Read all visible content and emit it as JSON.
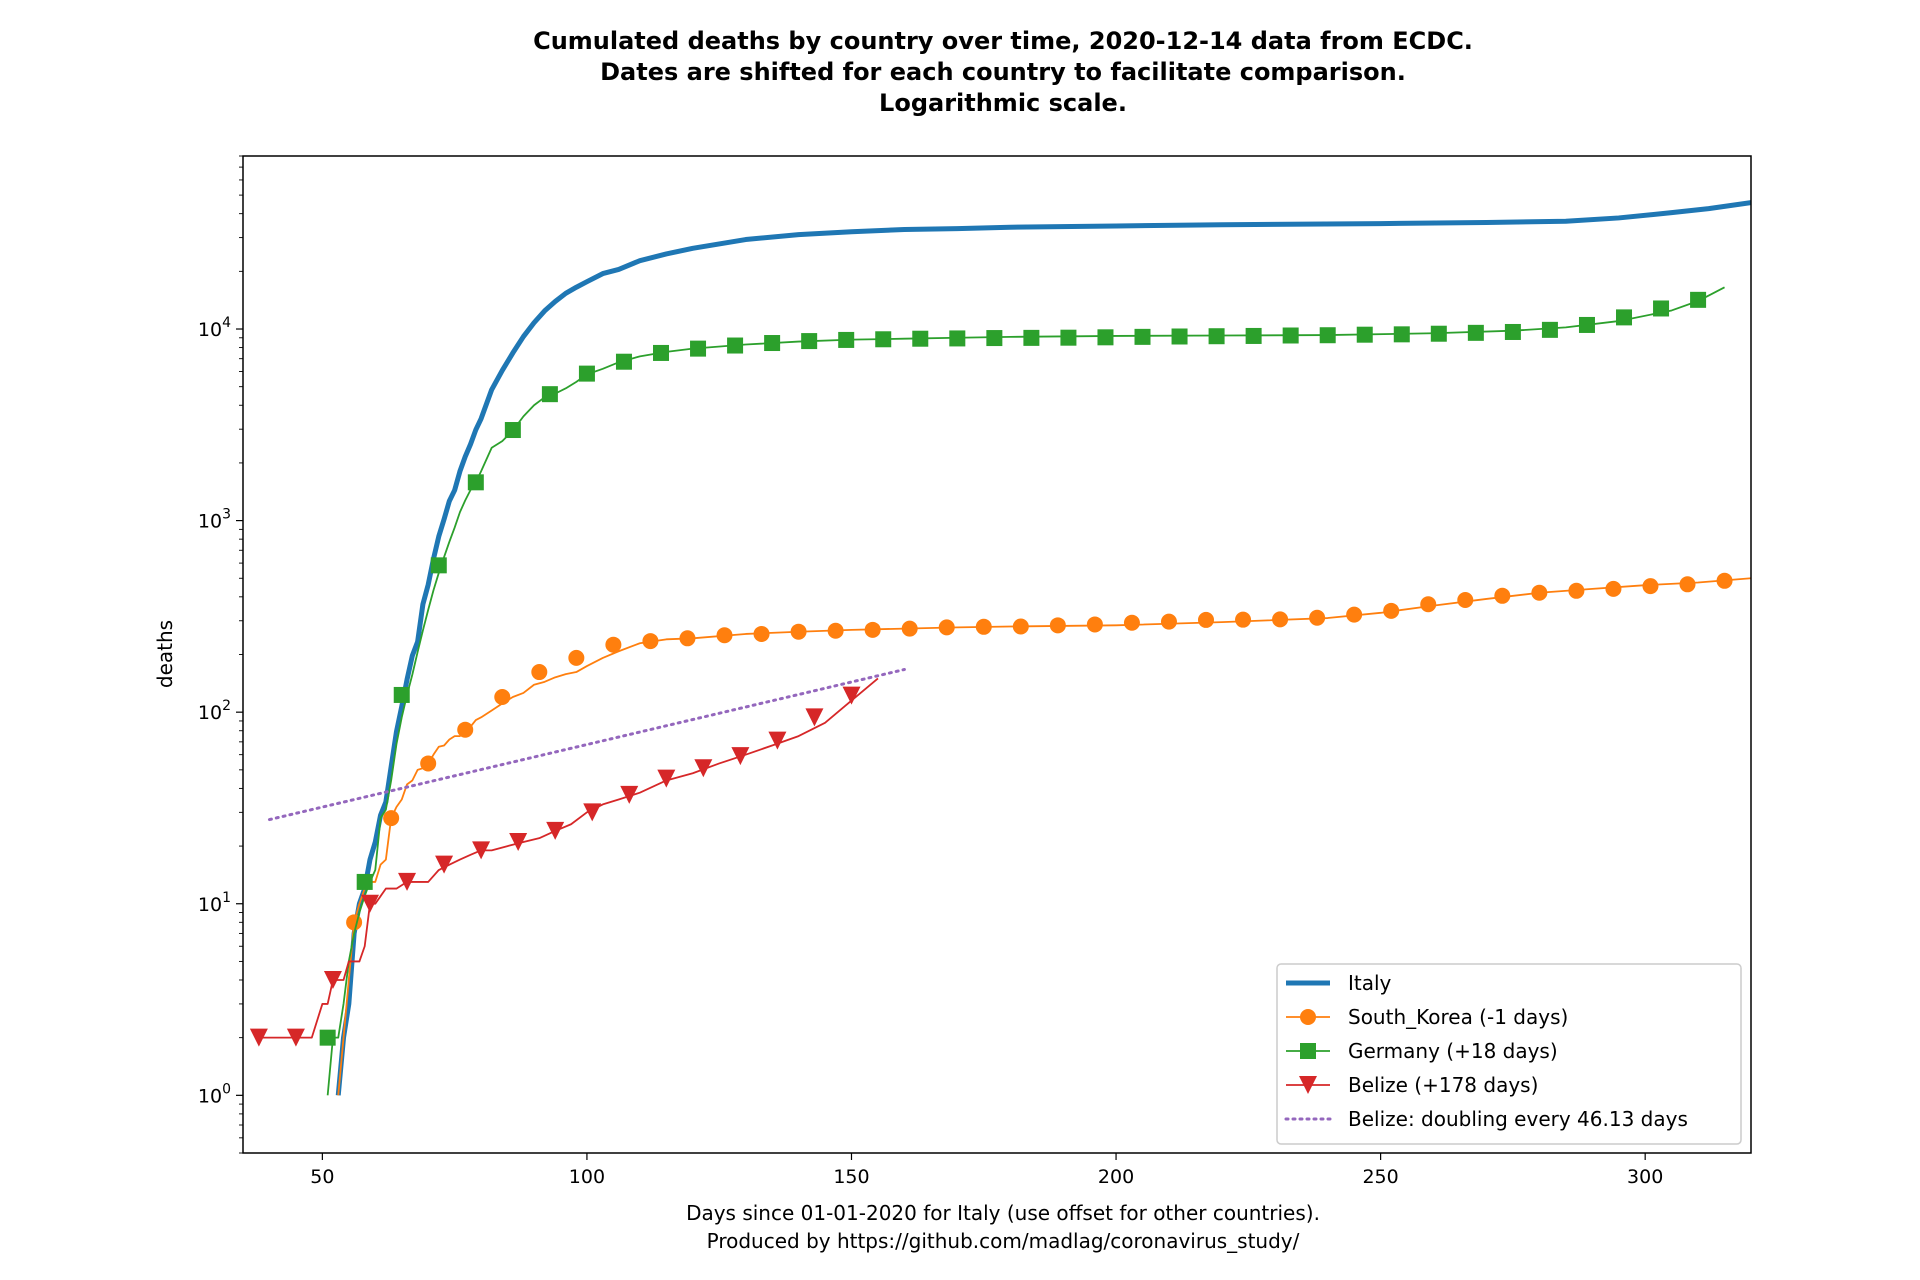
{
  "chart_data": {
    "type": "line",
    "title_lines": [
      "Cumulated deaths by country over time, 2020-12-14 data from ECDC.",
      "Dates are shifted for each country to facilitate comparison.",
      "Logarithmic scale."
    ],
    "xlabel_lines": [
      "Days since 01-01-2020 for Italy (use offset for other countries).",
      "Produced by https://github.com/madlag/coronavirus_study/"
    ],
    "ylabel": "deaths",
    "x_scale": "linear",
    "y_scale": "log",
    "xlim": [
      35,
      320
    ],
    "ylim": [
      0.5,
      80000
    ],
    "x_ticks": [
      50,
      100,
      150,
      200,
      250,
      300
    ],
    "y_ticks": [
      1,
      10,
      100,
      1000,
      10000
    ],
    "y_tick_labels": [
      {
        "base": "10",
        "exp": "0"
      },
      {
        "base": "10",
        "exp": "1"
      },
      {
        "base": "10",
        "exp": "2"
      },
      {
        "base": "10",
        "exp": "3"
      },
      {
        "base": "10",
        "exp": "4"
      }
    ],
    "grid": false,
    "legend_position": "lower right",
    "series": [
      {
        "name": "Italy",
        "color": "#1f77b4",
        "marker": "none",
        "line_style": "solid",
        "x": [
          53,
          54,
          55,
          56,
          57,
          58,
          59,
          60,
          61,
          62,
          63,
          64,
          65,
          66,
          67,
          68,
          69,
          70,
          71,
          72,
          73,
          74,
          75,
          76,
          77,
          78,
          79,
          80,
          82,
          84,
          86,
          88,
          90,
          92,
          94,
          96,
          98,
          100,
          103,
          106,
          110,
          115,
          120,
          130,
          140,
          150,
          160,
          170,
          180,
          200,
          220,
          250,
          270,
          285,
          295,
          305,
          312,
          320
        ],
        "y": [
          1,
          2,
          3,
          7,
          10,
          12,
          17,
          21,
          29,
          34,
          52,
          79,
          107,
          148,
          197,
          233,
          366,
          463,
          631,
          827,
          1016,
          1266,
          1441,
          1809,
          2158,
          2503,
          2978,
          3405,
          4825,
          6077,
          7503,
          9134,
          10779,
          12428,
          13915,
          15362,
          16523,
          17669,
          19468,
          20465,
          22745,
          24648,
          26384,
          29315,
          31106,
          32169,
          33072,
          33415,
          34000,
          34500,
          35000,
          35500,
          36000,
          36500,
          38000,
          40500,
          42500,
          45700
        ]
      },
      {
        "name": "South_Korea (-1 days)",
        "color": "#ff7f0e",
        "marker": "circle",
        "line_style": "solid",
        "x": [
          53,
          54,
          55,
          56,
          57,
          58,
          59,
          60,
          61,
          62,
          63,
          64,
          65,
          66,
          67,
          68,
          69,
          70,
          71,
          72,
          73,
          74,
          75,
          76,
          77,
          78,
          79,
          80,
          82,
          84,
          86,
          88,
          90,
          92,
          94,
          96,
          98,
          100,
          103,
          106,
          110,
          115,
          120,
          130,
          140,
          150,
          160,
          170,
          180,
          200,
          220,
          240,
          250,
          260,
          270,
          280,
          290,
          300,
          310,
          320
        ],
        "y": [
          1,
          2,
          4,
          8,
          10,
          12,
          13,
          13,
          16,
          17,
          28,
          32,
          35,
          42,
          44,
          50,
          51,
          54,
          60,
          66,
          67,
          72,
          75,
          75,
          81,
          84,
          91,
          94,
          102,
          111,
          120,
          126,
          139,
          144,
          152,
          158,
          162,
          174,
          192,
          208,
          229,
          240,
          243,
          256,
          263,
          269,
          273,
          277,
          280,
          284,
          295,
          310,
          330,
          360,
          390,
          420,
          440,
          460,
          475,
          500
        ],
        "markers_x": [
          56,
          63,
          70,
          77,
          84,
          91,
          98,
          105,
          112,
          119,
          126,
          133,
          140,
          147,
          154,
          161,
          168,
          175,
          182,
          189,
          196,
          203,
          210,
          217,
          224,
          231,
          238,
          245,
          252,
          259,
          266,
          273,
          280,
          287,
          294,
          301,
          308,
          315
        ],
        "markers_y": [
          8,
          28,
          54,
          81,
          120,
          162,
          192,
          225,
          235,
          243,
          252,
          256,
          263,
          266,
          269,
          273,
          277,
          279,
          280,
          284,
          287,
          293,
          297,
          303,
          304,
          305,
          311,
          323,
          338,
          366,
          385,
          405,
          420,
          430,
          440,
          455,
          465,
          485
        ]
      },
      {
        "name": "Germany (+18 days)",
        "color": "#2ca02c",
        "marker": "square",
        "line_style": "solid",
        "x": [
          51,
          52,
          53,
          54,
          55,
          56,
          57,
          58,
          59,
          60,
          61,
          62,
          63,
          64,
          65,
          66,
          67,
          68,
          69,
          70,
          71,
          72,
          73,
          74,
          75,
          76,
          77,
          78,
          79,
          80,
          82,
          84,
          86,
          88,
          90,
          92,
          94,
          96,
          98,
          100,
          103,
          106,
          110,
          115,
          120,
          130,
          140,
          150,
          160,
          170,
          180,
          200,
          220,
          240,
          260,
          275,
          285,
          295,
          305,
          310,
          315
        ],
        "y": [
          1,
          2,
          2,
          3,
          5,
          7,
          9,
          11,
          13,
          15,
          28,
          31,
          44,
          68,
          94,
          123,
          157,
          206,
          267,
          342,
          433,
          533,
          645,
          775,
          920,
          1107,
          1275,
          1444,
          1584,
          1810,
          2400,
          2600,
          2950,
          3500,
          4000,
          4400,
          4600,
          4900,
          5300,
          5800,
          6200,
          6700,
          7200,
          7600,
          7900,
          8300,
          8600,
          8800,
          8900,
          9000,
          9100,
          9200,
          9250,
          9300,
          9500,
          9800,
          10200,
          11000,
          12500,
          14000,
          16500
        ],
        "markers_x": [
          51,
          58,
          65,
          72,
          79,
          86,
          93,
          100,
          107,
          114,
          121,
          128,
          135,
          142,
          149,
          156,
          163,
          170,
          177,
          184,
          191,
          198,
          205,
          212,
          219,
          226,
          233,
          240,
          247,
          254,
          261,
          268,
          275,
          282,
          289,
          296,
          303,
          310
        ],
        "markers_y": [
          2,
          13,
          123,
          584,
          1584,
          2970,
          4570,
          5850,
          6750,
          7500,
          7900,
          8200,
          8450,
          8650,
          8770,
          8840,
          8900,
          8930,
          8970,
          8990,
          9010,
          9050,
          9100,
          9140,
          9170,
          9200,
          9250,
          9280,
          9340,
          9380,
          9450,
          9550,
          9650,
          9900,
          10500,
          11500,
          12800,
          14200
        ]
      },
      {
        "name": "Belize (+178 days)",
        "color": "#d62728",
        "marker": "triangle-down",
        "line_style": "solid",
        "x": [
          38,
          40,
          45,
          48,
          50,
          51,
          52,
          53,
          54,
          55,
          56,
          57,
          58,
          59,
          60,
          62,
          64,
          66,
          68,
          70,
          72,
          74,
          76,
          78,
          80,
          82,
          85,
          88,
          91,
          94,
          97,
          100,
          103,
          106,
          110,
          115,
          120,
          125,
          130,
          135,
          140,
          145,
          150,
          155
        ],
        "y": [
          2,
          2,
          2,
          2,
          3,
          3,
          4,
          4,
          4,
          5,
          5,
          5,
          6,
          10,
          10,
          12,
          12,
          13,
          13,
          13,
          15,
          16,
          17,
          18,
          19,
          19,
          20,
          21,
          22,
          24,
          26,
          30,
          33,
          35,
          38,
          44,
          48,
          54,
          60,
          67,
          75,
          88,
          115,
          150
        ],
        "markers_x": [
          38,
          45,
          52,
          59,
          66,
          73,
          80,
          87,
          94,
          101,
          108,
          115,
          122,
          129,
          136,
          143,
          150
        ],
        "markers_y": [
          2,
          2,
          4,
          10,
          13,
          16,
          19,
          21,
          24,
          30,
          37,
          45,
          51,
          59,
          71,
          94,
          122
        ]
      },
      {
        "name": "Belize: doubling every 46.13 days",
        "color": "#9467bd",
        "marker": "none",
        "line_style": "dotted",
        "x": [
          40,
          160
        ],
        "y": [
          27.5,
          167
        ]
      }
    ]
  }
}
